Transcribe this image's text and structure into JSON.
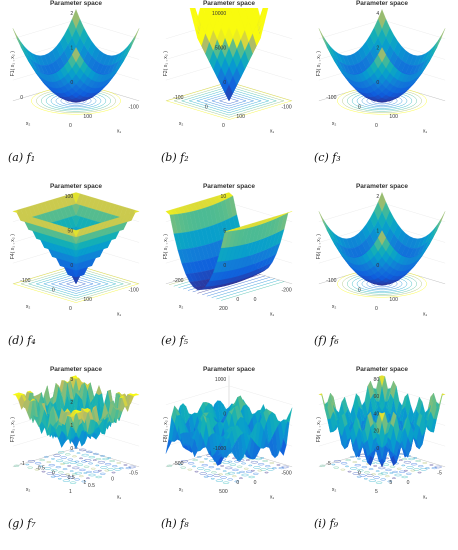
{
  "figure": {
    "panels": [
      {
        "id": "f1",
        "title": "Parameter space",
        "caption": "(a) f₁",
        "zlabel": "F1( x₁ , x₂ )",
        "zmult": "×10⁴",
        "zticks": [
          "2",
          "1",
          "0"
        ],
        "x1label": "x₁",
        "x2label": "x₂",
        "x1ticks": [
          "100",
          "0"
        ],
        "x2ticks": [
          "0",
          "-100"
        ],
        "shape": "bowl"
      },
      {
        "id": "f2",
        "title": "Parameter space",
        "caption": "(b) f₂",
        "zlabel": "F2( x₁ , x₂ )",
        "zmult": "",
        "zticks": [
          "10000",
          "5000",
          "0"
        ],
        "x1label": "x₁",
        "x2label": "x₂",
        "x1ticks": [
          "100",
          "0",
          "-100"
        ],
        "x2ticks": [
          "0",
          "-100"
        ],
        "shape": "absprod"
      },
      {
        "id": "f3",
        "title": "Parameter space",
        "caption": "(c) f₃",
        "zlabel": "F3( x₁ , x₂ )",
        "zmult": "×10⁴",
        "zticks": [
          "4",
          "2",
          "0"
        ],
        "x1label": "x₁",
        "x2label": "x₂",
        "x1ticks": [
          "100",
          "0",
          "-100"
        ],
        "x2ticks": [
          "0"
        ],
        "shape": "bowl"
      },
      {
        "id": "f4",
        "title": "Parameter space",
        "caption": "(d) f₄",
        "zlabel": "F4( x₁ , x₂ )",
        "zmult": "",
        "zticks": [
          "100",
          "50",
          "0"
        ],
        "x1label": "x₁",
        "x2label": "x₂",
        "x1ticks": [
          "100",
          "0",
          "-100"
        ],
        "x2ticks": [
          "0",
          "-100"
        ],
        "shape": "pyramid"
      },
      {
        "id": "f5",
        "title": "Parameter space",
        "caption": "(e) f₅",
        "zlabel": "F5( x₁ , x₂ )",
        "zmult": "×10¹⁰",
        "zticks": [
          "10",
          "5",
          "0"
        ],
        "x1label": "x₁",
        "x2label": "x₂",
        "x1ticks": [
          "0",
          "-200"
        ],
        "x2ticks": [
          "200",
          "0",
          "-200"
        ],
        "shape": "valley"
      },
      {
        "id": "f6",
        "title": "Parameter space",
        "caption": "(f) f₆",
        "zlabel": "F6( x₁ , x₂ )",
        "zmult": "×10⁴",
        "zticks": [
          "2",
          "1",
          "0"
        ],
        "x1label": "x₁",
        "x2label": "x₂",
        "x1ticks": [
          "100",
          "0",
          "-100"
        ],
        "x2ticks": [
          "0"
        ],
        "shape": "bowl"
      },
      {
        "id": "f7",
        "title": "Parameter space",
        "caption": "(g) f₇",
        "zlabel": "F7( x₁ , x₂ )",
        "zmult": "",
        "zticks": [
          "3",
          "2",
          "1",
          "0"
        ],
        "x1label": "x₁",
        "x2label": "x₂",
        "x1ticks": [
          "1",
          "0.5",
          "0",
          "-0.5",
          "-1"
        ],
        "x2ticks": [
          "1",
          "0.5",
          "0",
          "-0.5"
        ],
        "shape": "noisy"
      },
      {
        "id": "f8",
        "title": "Parameter space",
        "caption": "(h) f₈",
        "zlabel": "F8( x₁ , x₂ )",
        "zmult": "",
        "zticks": [
          "1000",
          "0",
          "-1000"
        ],
        "x1label": "x₁",
        "x2label": "x₂",
        "x1ticks": [
          "0",
          "-500"
        ],
        "x2ticks": [
          "500",
          "0",
          "-500"
        ],
        "shape": "egg"
      },
      {
        "id": "f9",
        "title": "Parameter space",
        "caption": "(i) f₉",
        "zlabel": "F9( x₁ , x₂ )",
        "zmult": "",
        "zticks": [
          "80",
          "60",
          "40",
          "20",
          "0"
        ],
        "x1label": "x₁",
        "x2label": "x₂",
        "x1ticks": [
          "5",
          "0",
          "-5"
        ],
        "x2ticks": [
          "5",
          "0",
          "-5"
        ],
        "shape": "rastrigin"
      }
    ]
  },
  "chart_data": {
    "type": "surface",
    "panels": [
      {
        "name": "f1",
        "zlim": [
          0,
          20000
        ],
        "x1lim": [
          -100,
          100
        ],
        "x2lim": [
          -100,
          100
        ]
      },
      {
        "name": "f2",
        "zlim": [
          0,
          10000
        ],
        "x1lim": [
          -100,
          100
        ],
        "x2lim": [
          -100,
          100
        ]
      },
      {
        "name": "f3",
        "zlim": [
          0,
          40000
        ],
        "x1lim": [
          -100,
          100
        ],
        "x2lim": [
          -100,
          100
        ]
      },
      {
        "name": "f4",
        "zlim": [
          0,
          100
        ],
        "x1lim": [
          -100,
          100
        ],
        "x2lim": [
          -100,
          100
        ]
      },
      {
        "name": "f5",
        "zlim": [
          0,
          100000000000.0
        ],
        "x1lim": [
          -200,
          200
        ],
        "x2lim": [
          -200,
          200
        ]
      },
      {
        "name": "f6",
        "zlim": [
          0,
          20000
        ],
        "x1lim": [
          -100,
          100
        ],
        "x2lim": [
          -100,
          100
        ]
      },
      {
        "name": "f7",
        "zlim": [
          0,
          3
        ],
        "x1lim": [
          -1,
          1
        ],
        "x2lim": [
          -1,
          1
        ]
      },
      {
        "name": "f8",
        "zlim": [
          -1000,
          1000
        ],
        "x1lim": [
          -500,
          500
        ],
        "x2lim": [
          -500,
          500
        ]
      },
      {
        "name": "f9",
        "zlim": [
          0,
          80
        ],
        "x1lim": [
          -5,
          5
        ],
        "x2lim": [
          -5,
          5
        ]
      }
    ]
  }
}
